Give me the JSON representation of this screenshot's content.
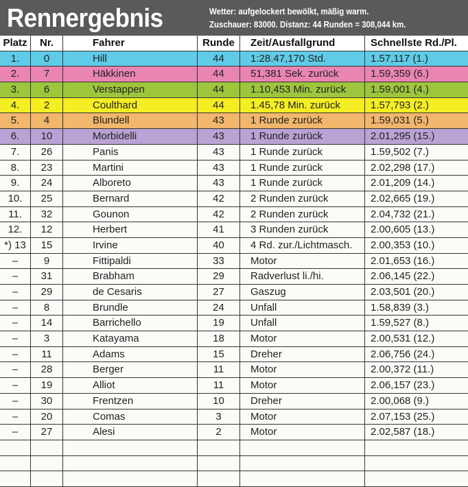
{
  "header": {
    "title": "Rennergebnis",
    "line1": "Wetter: aufgelockert bewölkt, mäßig warm.",
    "line2": "Zuschauer: 83000. Distanz: 44 Runden = 308,044 km."
  },
  "columns": [
    "Platz",
    "Nr.",
    "Fahrer",
    "Runde",
    "Zeit/Ausfallgrund",
    "Schnellste Rd./Pl."
  ],
  "row_colors": [
    "#5fcbe6",
    "#ea84b0",
    "#9dc63c",
    "#f4ee22",
    "#f2b66c",
    "#b9a2d4"
  ],
  "rows": [
    [
      "1.",
      "0",
      "Hill",
      "44",
      "1:28.47,170 Std.",
      "1.57,117 (1.)"
    ],
    [
      "2.",
      "7",
      "Häkkinen",
      "44",
      "51,381 Sek.  zurück",
      "1.59,359 (6.)"
    ],
    [
      "3.",
      "6",
      "Verstappen",
      "44",
      "1.10,453 Min. zurück",
      "1.59,001 (4.)"
    ],
    [
      "4.",
      "2",
      "Coulthard",
      "44",
      "1.45,78 Min. zurück",
      "1.57,793 (2.)"
    ],
    [
      "5.",
      "4",
      "Blundell",
      "43",
      "1 Runde zurück",
      "1.59,031 (5.)"
    ],
    [
      "6.",
      "10",
      "Morbidelli",
      "43",
      "1 Runde zurück",
      "2.01,295 (15.)"
    ],
    [
      "7.",
      "26",
      "Panis",
      "43",
      "1 Runde zurück",
      "1.59,502 (7.)"
    ],
    [
      "8.",
      "23",
      "Martini",
      "43",
      "1 Runde zurück",
      "2.02,298 (17.)"
    ],
    [
      "9.",
      "24",
      "Alboreto",
      "43",
      "1 Runde zurück",
      "2.01,209 (14.)"
    ],
    [
      "10.",
      "25",
      "Bernard",
      "42",
      "2 Runden zurück",
      "2.02,665 (19.)"
    ],
    [
      "11.",
      "32",
      "Gounon",
      "42",
      "2 Runden zurück",
      "2.04,732 (21.)"
    ],
    [
      "12.",
      "12",
      "Herbert",
      "41",
      "3 Runden zurück",
      "2.00,605 (13.)"
    ],
    [
      "*) 13",
      "15",
      "Irvine",
      "40",
      "4 Rd. zur./Lichtmasch.",
      "2.00,353 (10.)"
    ],
    [
      "–",
      "9",
      "Fittipaldi",
      "33",
      "Motor",
      "2.01,653 (16.)"
    ],
    [
      "–",
      "31",
      "Brabham",
      "29",
      "Radverlust li./hi.",
      "2.06,145 (22.)"
    ],
    [
      "–",
      "29",
      "de Cesaris",
      "27",
      "Gaszug",
      "2.03,501 (20.)"
    ],
    [
      "–",
      "8",
      "Brundle",
      "24",
      "Unfall",
      "1.58,839 (3.)"
    ],
    [
      "–",
      "14",
      "Barrichello",
      "19",
      "Unfall",
      "1.59,527 (8.)"
    ],
    [
      "–",
      "3",
      "Katayama",
      "18",
      "Motor",
      "2.00,531 (12.)"
    ],
    [
      "–",
      "11",
      "Adams",
      "15",
      "Dreher",
      "2.06,756 (24.)"
    ],
    [
      "–",
      "28",
      "Berger",
      "11",
      "Motor",
      "2.00,372 (11.)"
    ],
    [
      "–",
      "19",
      "Alliot",
      "11",
      "Motor",
      "2.06,157 (23.)"
    ],
    [
      "–",
      "30",
      "Frentzen",
      "10",
      "Dreher",
      "2.00,068 (9.)"
    ],
    [
      "–",
      "20",
      "Comas",
      "3",
      "Motor",
      "2.07,153 (25.)"
    ],
    [
      "–",
      "27",
      "Alesi",
      "2",
      "Motor",
      "2.02,587 (18.)"
    ]
  ]
}
